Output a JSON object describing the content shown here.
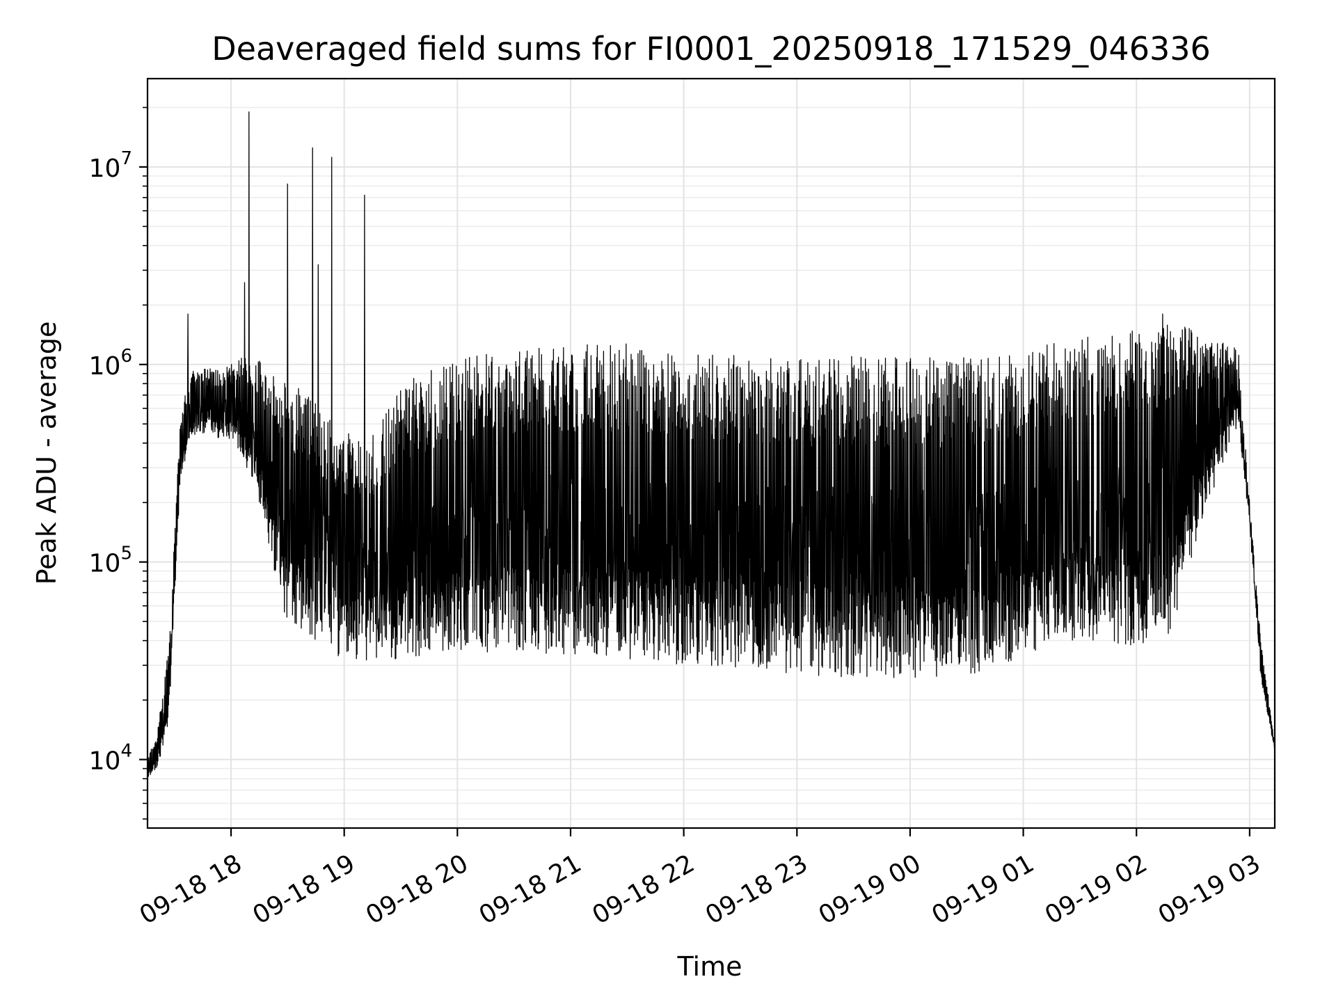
{
  "chart_data": {
    "type": "line",
    "title": "Deaveraged field sums for FI0001_20250918_171529_046336",
    "xlabel": "Time",
    "ylabel": "Peak ADU - average",
    "yscale": "log",
    "ylim": [
      4500,
      28000000
    ],
    "xlim_hours": [
      17.262,
      27.222
    ],
    "grid": true,
    "legend": "none",
    "x_ticks": [
      {
        "hours": 18,
        "label": "09-18 18"
      },
      {
        "hours": 19,
        "label": "09-18 19"
      },
      {
        "hours": 20,
        "label": "09-18 20"
      },
      {
        "hours": 21,
        "label": "09-18 21"
      },
      {
        "hours": 22,
        "label": "09-18 22"
      },
      {
        "hours": 23,
        "label": "09-18 23"
      },
      {
        "hours": 24,
        "label": "09-19 00"
      },
      {
        "hours": 25,
        "label": "09-19 01"
      },
      {
        "hours": 26,
        "label": "09-19 02"
      },
      {
        "hours": 27,
        "label": "09-19 03"
      }
    ],
    "y_ticks": [
      {
        "value": 10000,
        "base": "10",
        "exp": "4"
      },
      {
        "value": 100000,
        "base": "10",
        "exp": "5"
      },
      {
        "value": 1000000,
        "base": "10",
        "exp": "6"
      },
      {
        "value": 10000000,
        "base": "10",
        "exp": "7"
      }
    ],
    "series": [
      {
        "name": "field sums",
        "color": "#000000",
        "envelope_hours": [
          17.262,
          17.35,
          17.45,
          17.55,
          17.62,
          17.7,
          18.0,
          18.2,
          18.35,
          18.5,
          18.7,
          18.9,
          19.2,
          19.5,
          20.0,
          20.5,
          21.0,
          21.5,
          22.0,
          22.5,
          23.0,
          23.5,
          24.0,
          24.5,
          25.0,
          25.3,
          25.6,
          26.0,
          26.3,
          26.6,
          26.9,
          27.0,
          27.1,
          27.222
        ],
        "envelope_high": [
          10000,
          14000,
          38000,
          500000,
          900000,
          950000,
          1000000,
          1200000,
          900000,
          850000,
          700000,
          500000,
          400000,
          800000,
          1100000,
          1200000,
          1300000,
          1300000,
          1200000,
          1100000,
          1100000,
          1100000,
          1100000,
          1100000,
          1200000,
          1300000,
          1400000,
          1500000,
          1700000,
          1400000,
          1200000,
          200000,
          40000,
          12000
        ],
        "envelope_low": [
          8000,
          9000,
          15000,
          250000,
          350000,
          450000,
          400000,
          250000,
          100000,
          45000,
          40000,
          32000,
          30000,
          30000,
          32000,
          33000,
          31000,
          30000,
          28000,
          27000,
          25000,
          24000,
          24000,
          24000,
          30000,
          38000,
          36000,
          34000,
          40000,
          170000,
          500000,
          150000,
          25000,
          11000
        ],
        "spikes": [
          {
            "hours": 17.62,
            "value": 1800000
          },
          {
            "hours": 18.16,
            "value": 19000000
          },
          {
            "hours": 18.12,
            "value": 2600000
          },
          {
            "hours": 18.5,
            "value": 8200000
          },
          {
            "hours": 18.72,
            "value": 12500000
          },
          {
            "hours": 18.77,
            "value": 3200000
          },
          {
            "hours": 18.89,
            "value": 11200000
          },
          {
            "hours": 19.18,
            "value": 7200000
          },
          {
            "hours": 26.23,
            "value": 1800000
          }
        ]
      }
    ]
  }
}
